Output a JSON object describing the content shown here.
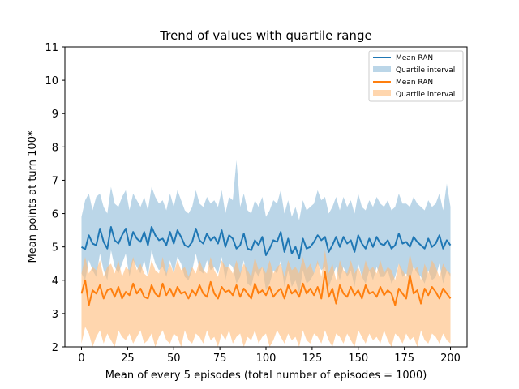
{
  "chart_data": {
    "type": "line",
    "title": "Trend of values with quartile range",
    "xlabel": "Mean of every 5 episodes (total number of episodes = 1000)",
    "ylabel": "Mean points at turn 100*",
    "xlim": [
      -9,
      209
    ],
    "ylim": [
      2,
      11
    ],
    "xticks": [
      0,
      25,
      50,
      75,
      100,
      125,
      150,
      175,
      200
    ],
    "yticks": [
      2,
      3,
      4,
      5,
      6,
      7,
      8,
      9,
      10,
      11
    ],
    "grid": false,
    "legend_position": "top-right",
    "legend": [
      "Mean RAN",
      "Quartile interval",
      "Mean RAN",
      "Quartile interval"
    ],
    "x_start": 0,
    "x_step": 2,
    "series": [
      {
        "name": "Mean RAN",
        "color": "#1f77b4",
        "band_color": "#1f77b4",
        "band_name": "Quartile interval",
        "mean": [
          5.0,
          4.93,
          5.35,
          5.1,
          5.05,
          5.55,
          5.15,
          4.95,
          5.6,
          5.2,
          5.1,
          5.35,
          5.55,
          5.05,
          5.45,
          5.25,
          5.15,
          5.45,
          5.05,
          5.6,
          5.35,
          5.2,
          5.25,
          5.05,
          5.45,
          5.1,
          5.5,
          5.3,
          5.05,
          5.0,
          5.15,
          5.55,
          5.2,
          5.1,
          5.4,
          5.2,
          5.3,
          5.1,
          5.5,
          5.0,
          5.35,
          5.25,
          4.95,
          5.05,
          5.4,
          4.95,
          4.9,
          5.2,
          5.05,
          5.3,
          4.75,
          4.95,
          5.2,
          5.15,
          5.45,
          4.85,
          5.25,
          4.8,
          5.0,
          4.65,
          5.25,
          4.95,
          5.0,
          5.15,
          5.35,
          5.2,
          5.3,
          4.85,
          5.05,
          5.3,
          5.0,
          5.3,
          5.1,
          5.2,
          4.85,
          5.35,
          5.1,
          4.95,
          5.25,
          5.0,
          5.3,
          5.1,
          5.05,
          5.2,
          4.95,
          5.05,
          5.4,
          5.1,
          5.15,
          5.0,
          5.3,
          5.15,
          5.05,
          4.95,
          5.25,
          5.0,
          5.1,
          5.35,
          4.95,
          5.2,
          5.05
        ],
        "band_low": [
          4.2,
          4.0,
          4.6,
          4.3,
          4.1,
          4.8,
          4.3,
          4.0,
          4.9,
          4.4,
          4.2,
          4.5,
          4.8,
          4.1,
          4.6,
          4.4,
          4.2,
          4.6,
          4.1,
          4.9,
          4.5,
          4.3,
          4.4,
          4.1,
          4.6,
          4.2,
          4.7,
          4.5,
          4.1,
          4.0,
          4.3,
          4.8,
          4.3,
          4.2,
          4.6,
          4.3,
          4.4,
          4.2,
          4.7,
          4.0,
          4.5,
          4.4,
          3.9,
          4.1,
          4.6,
          3.9,
          3.8,
          4.3,
          4.1,
          4.4,
          3.7,
          3.9,
          4.3,
          4.2,
          4.6,
          3.8,
          4.3,
          3.8,
          4.0,
          3.6,
          4.3,
          3.9,
          4.0,
          4.2,
          4.5,
          4.3,
          4.4,
          3.8,
          4.1,
          4.4,
          4.0,
          4.4,
          4.1,
          4.3,
          3.8,
          4.5,
          4.1,
          3.9,
          4.3,
          4.0,
          4.4,
          4.1,
          4.1,
          4.3,
          3.9,
          4.1,
          4.5,
          4.1,
          4.2,
          4.0,
          4.4,
          4.2,
          4.1,
          3.9,
          4.3,
          4.0,
          4.1,
          4.5,
          3.9,
          4.3,
          4.1
        ],
        "band_high": [
          5.9,
          6.4,
          6.6,
          6.1,
          6.5,
          6.6,
          6.2,
          6.0,
          6.8,
          6.3,
          6.2,
          6.5,
          6.7,
          6.1,
          6.6,
          6.4,
          6.2,
          6.5,
          6.1,
          6.8,
          6.5,
          6.3,
          6.4,
          6.1,
          6.6,
          6.2,
          6.7,
          6.4,
          6.1,
          6.0,
          6.2,
          6.7,
          6.3,
          6.2,
          6.5,
          6.3,
          6.4,
          6.2,
          6.7,
          6.0,
          6.5,
          6.4,
          7.6,
          6.2,
          6.6,
          6.1,
          6.0,
          6.4,
          6.2,
          6.5,
          5.9,
          6.1,
          6.4,
          6.3,
          6.7,
          6.0,
          6.4,
          5.9,
          6.2,
          5.8,
          6.4,
          6.1,
          6.2,
          6.3,
          6.7,
          6.4,
          6.5,
          6.0,
          6.2,
          6.5,
          6.1,
          6.5,
          6.2,
          6.4,
          6.0,
          6.6,
          6.2,
          6.1,
          6.4,
          6.2,
          6.5,
          6.3,
          6.2,
          6.4,
          6.1,
          6.2,
          6.6,
          6.3,
          6.3,
          6.2,
          6.5,
          6.3,
          6.2,
          6.1,
          6.4,
          6.2,
          6.3,
          6.6,
          6.1,
          6.9,
          6.2
        ]
      },
      {
        "name": "Mean RAN",
        "color": "#ff7f0e",
        "band_color": "#ffbb78",
        "band_name": "Quartile interval",
        "mean": [
          3.6,
          4.0,
          3.25,
          3.7,
          3.6,
          3.85,
          3.45,
          3.7,
          3.75,
          3.5,
          3.8,
          3.45,
          3.65,
          3.55,
          3.9,
          3.6,
          3.75,
          3.5,
          3.45,
          3.85,
          3.6,
          3.5,
          3.9,
          3.55,
          3.75,
          3.5,
          3.8,
          3.6,
          3.65,
          3.45,
          3.7,
          3.55,
          3.85,
          3.6,
          3.5,
          3.95,
          3.6,
          3.45,
          3.8,
          3.65,
          3.7,
          3.55,
          3.85,
          3.5,
          3.75,
          3.6,
          3.45,
          3.9,
          3.6,
          3.7,
          3.55,
          3.8,
          3.5,
          3.65,
          3.75,
          3.45,
          3.85,
          3.6,
          3.7,
          3.5,
          3.9,
          3.6,
          3.75,
          3.55,
          3.8,
          3.45,
          4.25,
          3.5,
          3.75,
          3.3,
          3.85,
          3.6,
          3.5,
          3.8,
          3.55,
          3.7,
          3.45,
          3.85,
          3.6,
          3.65,
          3.5,
          3.8,
          3.55,
          3.7,
          3.6,
          3.25,
          3.75,
          3.6,
          3.45,
          4.15,
          3.6,
          3.7,
          3.3,
          3.75,
          3.55,
          3.8,
          3.65,
          3.45,
          3.75,
          3.6,
          3.45
        ],
        "band_low": [
          2.1,
          2.6,
          2.4,
          1.9,
          2.3,
          2.5,
          2.1,
          2.4,
          2.2,
          2.0,
          2.5,
          2.3,
          2.2,
          2.4,
          2.1,
          2.3,
          2.5,
          2.1,
          2.2,
          2.4,
          2.0,
          2.3,
          2.5,
          2.2,
          2.1,
          2.4,
          2.3,
          2.0,
          2.5,
          2.2,
          2.1,
          2.4,
          2.3,
          2.1,
          2.5,
          2.2,
          2.3,
          2.0,
          2.4,
          2.2,
          2.5,
          2.1,
          2.3,
          2.4,
          2.0,
          2.3,
          2.2,
          2.5,
          2.1,
          2.3,
          2.4,
          2.0,
          2.2,
          2.5,
          2.3,
          2.1,
          2.4,
          2.2,
          2.3,
          2.0,
          2.5,
          2.2,
          2.1,
          2.4,
          2.3,
          2.1,
          2.5,
          2.2,
          2.0,
          2.4,
          2.3,
          2.1,
          2.4,
          2.2,
          2.0,
          2.5,
          2.3,
          2.1,
          2.4,
          2.2,
          2.3,
          2.1,
          2.5,
          2.2,
          2.0,
          2.4,
          2.3,
          2.1,
          2.4,
          2.2,
          2.3,
          2.0,
          2.5,
          2.2,
          2.1,
          2.4,
          2.3,
          2.1,
          2.4,
          2.2,
          2.1
        ],
        "band_high": [
          4.2,
          4.7,
          4.2,
          4.4,
          4.3,
          4.6,
          4.1,
          4.4,
          4.5,
          4.2,
          4.6,
          4.1,
          4.4,
          4.3,
          4.7,
          4.3,
          4.5,
          4.2,
          4.1,
          4.6,
          4.3,
          4.2,
          4.7,
          4.2,
          4.5,
          4.2,
          4.6,
          4.3,
          4.4,
          4.1,
          4.4,
          4.2,
          4.6,
          4.3,
          4.2,
          4.7,
          4.3,
          4.1,
          4.6,
          4.4,
          4.4,
          4.2,
          4.6,
          4.2,
          4.5,
          4.3,
          4.1,
          4.7,
          4.3,
          4.4,
          4.2,
          4.6,
          4.2,
          4.4,
          4.5,
          4.1,
          4.6,
          4.3,
          4.4,
          4.2,
          4.7,
          4.3,
          4.5,
          4.2,
          4.6,
          4.1,
          4.9,
          4.2,
          4.5,
          4.0,
          4.6,
          4.3,
          4.2,
          4.6,
          4.2,
          4.4,
          4.1,
          4.6,
          4.3,
          4.4,
          4.2,
          4.6,
          4.2,
          4.4,
          4.3,
          4.0,
          4.5,
          4.3,
          4.1,
          4.8,
          4.3,
          4.4,
          4.0,
          4.5,
          4.2,
          4.6,
          4.4,
          4.1,
          4.5,
          4.3,
          4.2
        ]
      }
    ]
  }
}
